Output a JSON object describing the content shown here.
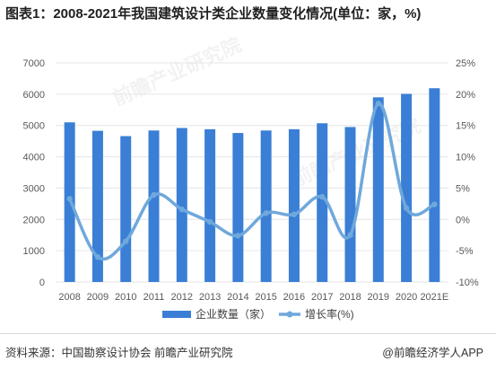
{
  "title": "图表1：2008-2021年我国建筑设计类企业数量变化情况(单位：家，%)",
  "source": "资料来源：中国勘察设计协会 前瞻产业研究院",
  "credit": "@前瞻经济学人APP",
  "watermark": "前瞻产业研究院",
  "colors": {
    "bar": "#3a7fd5",
    "line": "#6fa8dc",
    "grid": "#e6e6e6",
    "text": "#595959"
  },
  "chart_data": {
    "type": "bar",
    "categories": [
      "2008",
      "2009",
      "2010",
      "2011",
      "2012",
      "2013",
      "2014",
      "2015",
      "2016",
      "2017",
      "2018",
      "2019",
      "2020",
      "2021E"
    ],
    "series": [
      {
        "name": "企业数量（家）",
        "type": "bar",
        "axis": "left",
        "values": [
          5100,
          4830,
          4660,
          4840,
          4920,
          4880,
          4760,
          4840,
          4880,
          5070,
          4950,
          5900,
          6010,
          6190
        ]
      },
      {
        "name": "增长率(%)",
        "type": "line",
        "axis": "right",
        "values": [
          3.3,
          -6.0,
          -3.5,
          3.9,
          1.6,
          -0.4,
          -2.6,
          1.0,
          0.8,
          3.6,
          -2.5,
          18.5,
          1.8,
          2.4
        ]
      }
    ],
    "ylim": [
      0,
      7000
    ],
    "yticks": [
      0,
      1000,
      2000,
      3000,
      4000,
      5000,
      6000,
      7000
    ],
    "y2lim": [
      -10,
      25
    ],
    "y2ticks": [
      "-10%",
      "-5%",
      "0%",
      "5%",
      "10%",
      "15%",
      "20%",
      "25%"
    ],
    "grid": true,
    "legend_position": "bottom"
  }
}
